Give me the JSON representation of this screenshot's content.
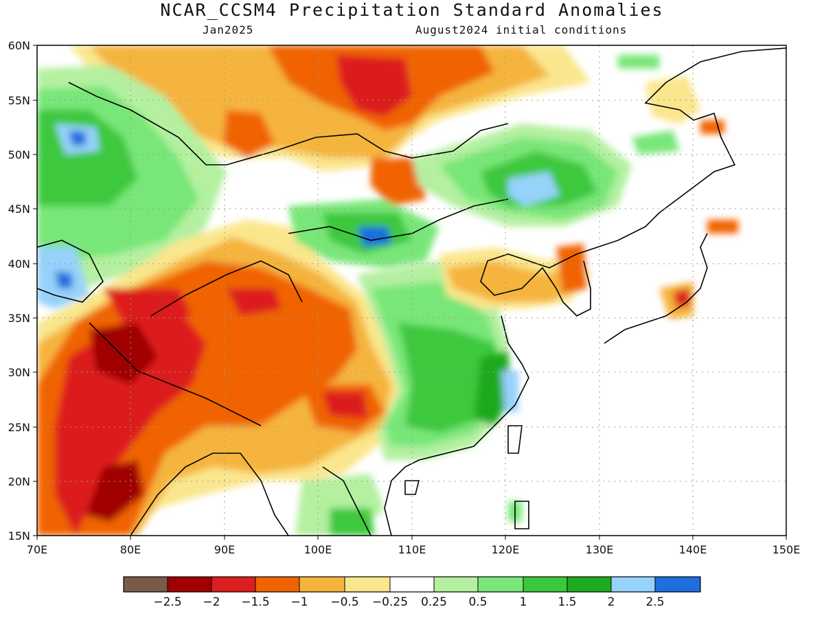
{
  "title": "NCAR_CCSM4 Precipitation Standard Anomalies",
  "subtitle_left": "Jan2025",
  "subtitle_right": "August2024 initial conditions",
  "map": {
    "lon_range": [
      70,
      150
    ],
    "lat_range": [
      15,
      60
    ],
    "lon_ticks": [
      "70E",
      "80E",
      "90E",
      "100E",
      "110E",
      "120E",
      "130E",
      "140E",
      "150E"
    ],
    "lat_ticks": [
      "60N",
      "55N",
      "50N",
      "45N",
      "40N",
      "35N",
      "30N",
      "25N",
      "20N",
      "15N"
    ],
    "grid": "dotted"
  },
  "colorbar": {
    "colors": [
      "#7a5a4a",
      "#a00000",
      "#dc1e1e",
      "#f06400",
      "#f5b43c",
      "#fae68c",
      "#ffffff",
      "#b4f0a0",
      "#78e678",
      "#3cc83c",
      "#1eaa1e",
      "#96d2fa",
      "#1e6edc"
    ],
    "labels": [
      "−2.5",
      "−2",
      "−1.5",
      "−1",
      "−0.5",
      "−0.25",
      "0.25",
      "0.5",
      "1",
      "1.5",
      "2",
      "2.5"
    ]
  }
}
